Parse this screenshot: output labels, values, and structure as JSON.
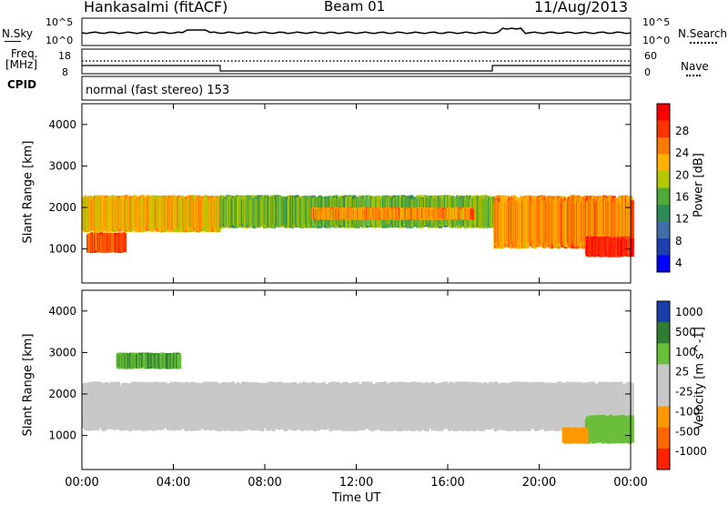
{
  "header": {
    "station": "Hankasalmi (fitACF)",
    "beam": "Beam 01",
    "date": "11/Aug/2013"
  },
  "noise_panel": {
    "left_label": "N.Sky",
    "right_label": "N.Search",
    "left_ticks": [
      "10^5",
      "10^0"
    ],
    "right_ticks": [
      "10^5",
      "10^0"
    ]
  },
  "freq_panel": {
    "left_label_line1": "Freq.",
    "left_label_line2": "[MHz]",
    "left_ticks": [
      "18",
      "8"
    ],
    "right_label": "Nave",
    "right_ticks": [
      "60",
      "0"
    ]
  },
  "cpid": {
    "label": "CPID",
    "program": "normal (fast stereo) 153"
  },
  "power_panel": {
    "ylabel": "Slant Range [km]",
    "yticks": [
      "4000",
      "3000",
      "2000",
      "1000"
    ],
    "colorbar_label": "Power [dB]",
    "colorbar_ticks": [
      "28",
      "24",
      "20",
      "16",
      "12",
      "8",
      "4"
    ],
    "colorbar_colors": [
      "#ff0000",
      "#ff3300",
      "#ff7a00",
      "#ffb300",
      "#b4c800",
      "#4faa3a",
      "#2e8b57",
      "#3f6fa8",
      "#1f3fb0",
      "#0000ff"
    ]
  },
  "velocity_panel": {
    "ylabel": "Slant Range [km]",
    "yticks": [
      "4000",
      "3000",
      "2000",
      "1000"
    ],
    "colorbar_label": "Velocity [m s^-1]",
    "colorbar_ticks": [
      "1000",
      "500",
      "100",
      "25",
      "-25",
      "-100",
      "-500",
      "-1000"
    ],
    "colorbar_colors": [
      "#1b3fa8",
      "#2e7d32",
      "#6abf3a",
      "#c8c8c8",
      "#c8c8c8",
      "#ff9900",
      "#ff6600",
      "#ff2200"
    ]
  },
  "xaxis": {
    "label": "Time UT",
    "ticks": [
      "00:00",
      "04:00",
      "08:00",
      "12:00",
      "16:00",
      "20:00",
      "00:00"
    ]
  },
  "chart_data": [
    {
      "type": "heatmap",
      "title": "Power",
      "ylabel": "Slant Range [km]",
      "xlabel": "Time UT",
      "xlim": [
        "00:00",
        "24:00"
      ],
      "ylim": [
        180,
        4500
      ],
      "colorbar": {
        "label": "Power [dB]",
        "range": [
          0,
          30
        ]
      },
      "features": [
        {
          "t_start": 0,
          "t_end": 6,
          "range_km": [
            1400,
            2300
          ],
          "power_db": 20
        },
        {
          "t_start": 0.2,
          "t_end": 1.8,
          "range_km": [
            900,
            1400
          ],
          "power_db": 26
        },
        {
          "t_start": 6,
          "t_end": 18,
          "range_km": [
            1500,
            2300
          ],
          "power_db": 14
        },
        {
          "t_start": 10,
          "t_end": 17,
          "range_km": [
            1700,
            2000
          ],
          "power_db": 22
        },
        {
          "t_start": 18,
          "t_end": 24,
          "range_km": [
            1000,
            2300
          ],
          "power_db": 22
        },
        {
          "t_start": 22,
          "t_end": 24,
          "range_km": [
            800,
            1300
          ],
          "power_db": 28
        }
      ]
    },
    {
      "type": "heatmap",
      "title": "Velocity",
      "ylabel": "Slant Range [km]",
      "xlabel": "Time UT",
      "xlim": [
        "00:00",
        "24:00"
      ],
      "ylim": [
        180,
        4500
      ],
      "colorbar": {
        "label": "Velocity [m s^-1]",
        "range": [
          -1000,
          1000
        ]
      },
      "features": [
        {
          "t_start": 0,
          "t_end": 24,
          "range_km": [
            1100,
            2300
          ],
          "velocity": 0
        },
        {
          "t_start": 1.5,
          "t_end": 4.2,
          "range_km": [
            2600,
            3000
          ],
          "velocity": 300
        },
        {
          "t_start": 22,
          "t_end": 24,
          "range_km": [
            800,
            1500
          ],
          "velocity": 200
        },
        {
          "t_start": 21,
          "t_end": 22,
          "range_km": [
            800,
            1200
          ],
          "velocity": -200
        }
      ]
    }
  ]
}
